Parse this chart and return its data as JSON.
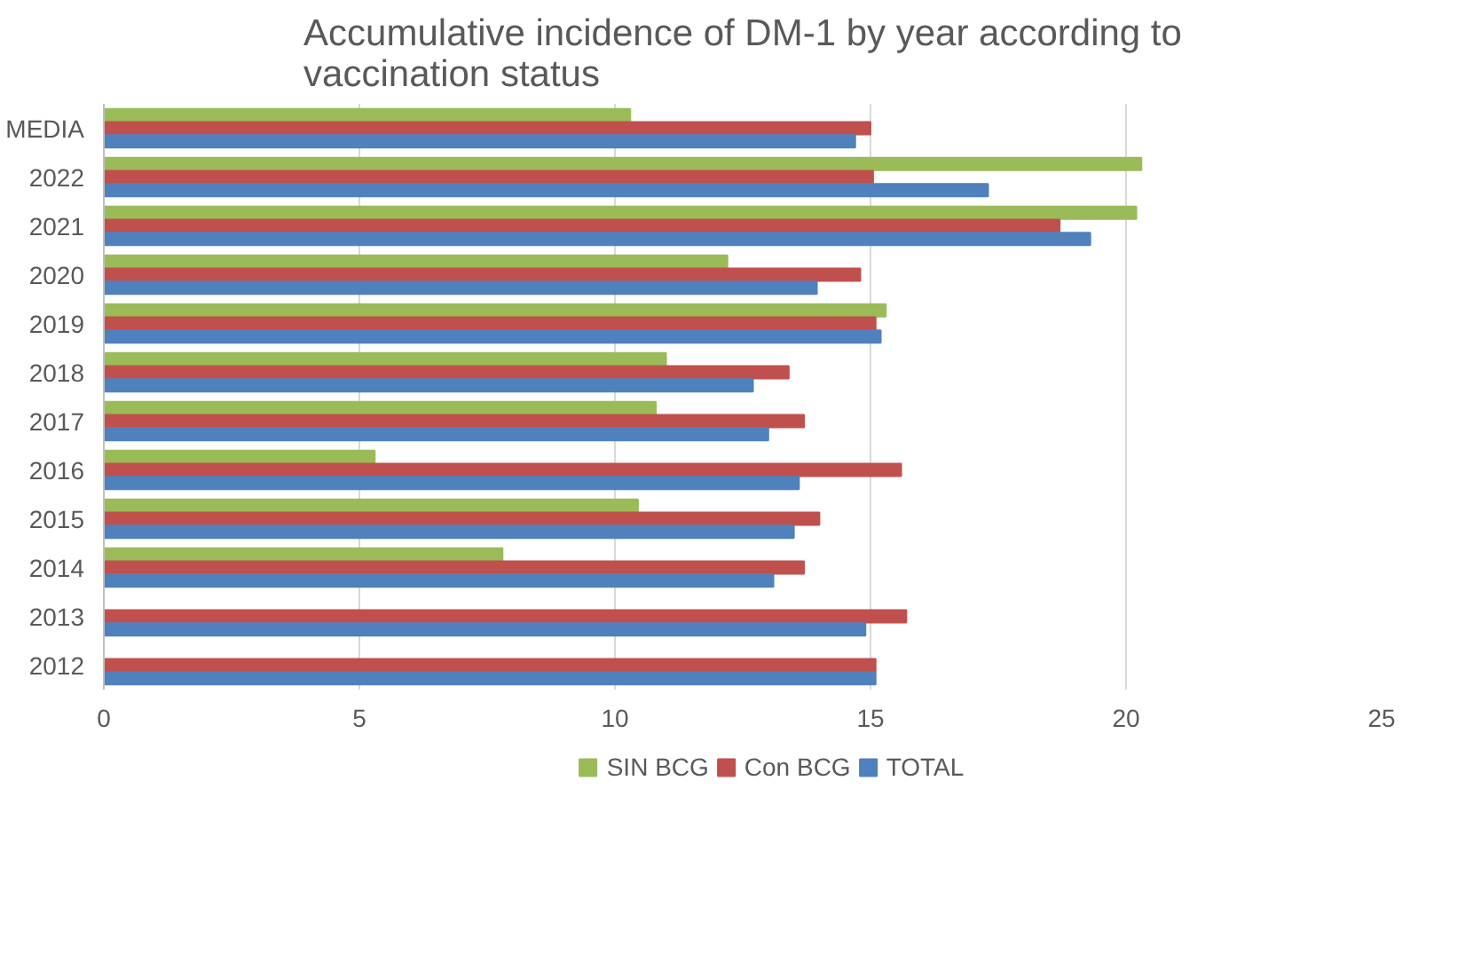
{
  "chart_data": {
    "type": "bar",
    "orientation": "horizontal",
    "title": "Accumulative incidence of DM-1 by year according to vaccination status",
    "categories": [
      "MEDIA",
      "2022",
      "2021",
      "2020",
      "2019",
      "2018",
      "2017",
      "2016",
      "2015",
      "2014",
      "2013",
      "2012"
    ],
    "series": [
      {
        "name": "SIN BCG",
        "color": "#9bbb59",
        "values": [
          10.3,
          20.3,
          20.2,
          12.2,
          15.3,
          11.0,
          10.8,
          5.3,
          10.45,
          7.8,
          null,
          null
        ]
      },
      {
        "name": "Con BCG",
        "color": "#c0504d",
        "values": [
          15.0,
          15.05,
          18.7,
          14.8,
          15.1,
          13.4,
          13.7,
          15.6,
          14.0,
          13.7,
          15.7,
          15.1
        ]
      },
      {
        "name": "TOTAL",
        "color": "#4f81bd",
        "values": [
          14.7,
          17.3,
          19.3,
          13.95,
          15.2,
          12.7,
          13.0,
          13.6,
          13.5,
          13.1,
          14.9,
          15.1
        ]
      }
    ],
    "xlim": [
      0,
      25
    ],
    "xticks": [
      0,
      5,
      10,
      15,
      20,
      25
    ],
    "grid": "x",
    "legend": "bottom"
  }
}
